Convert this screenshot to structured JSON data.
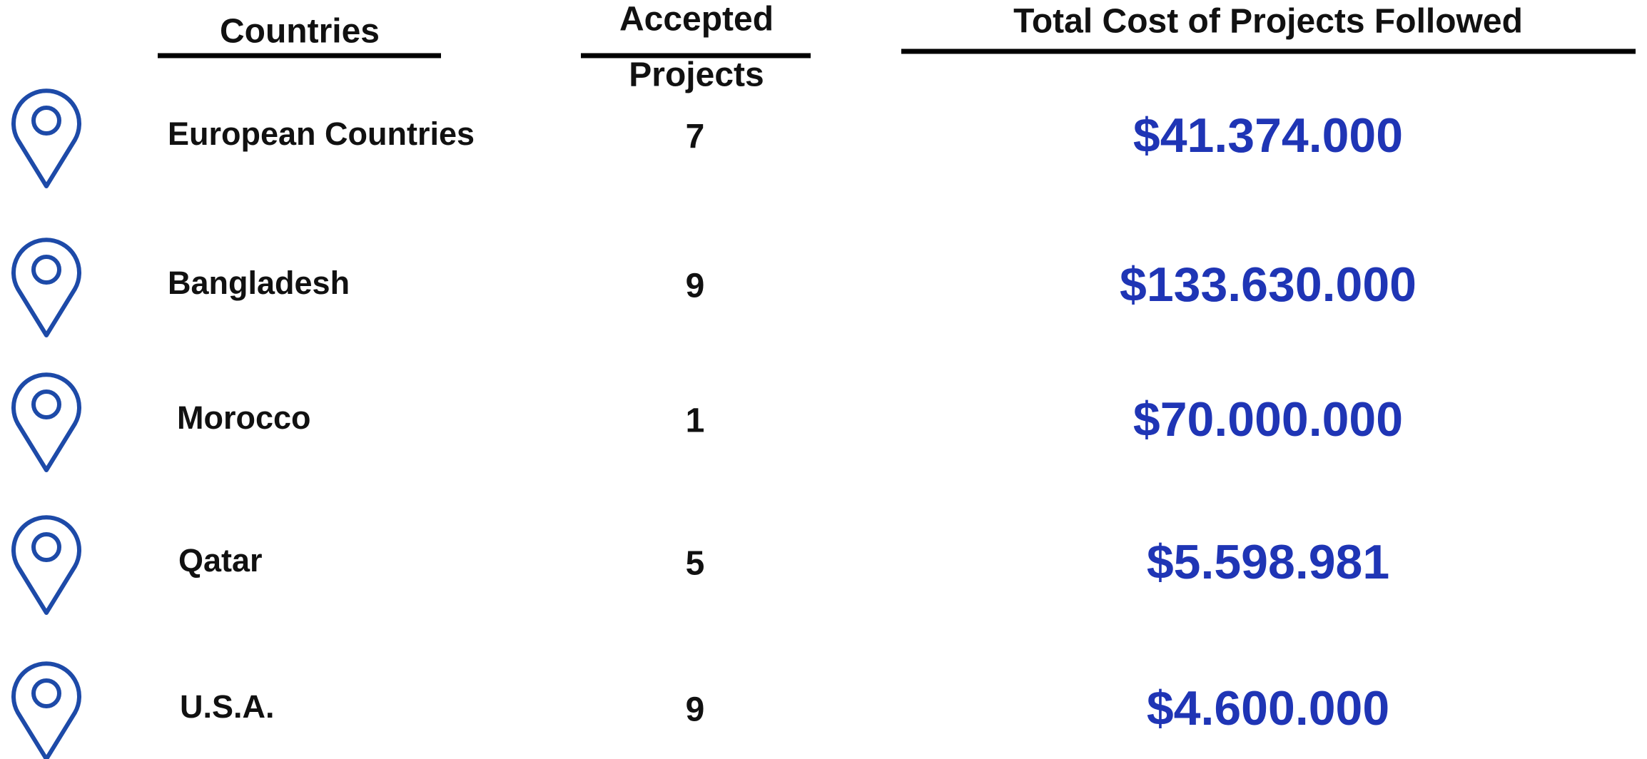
{
  "header": {
    "countries": "Countries",
    "accepted_line1": "Accepted",
    "accepted_line2": "Projects",
    "total_cost": "Total Cost of Projects Followed"
  },
  "rows": [
    {
      "country": "European Countries",
      "projects": 7,
      "cost": "$41.374.000"
    },
    {
      "country": "Bangladesh",
      "projects": 9,
      "cost": "$133.630.000"
    },
    {
      "country": "Morocco",
      "projects": 1,
      "cost": "$70.000.000"
    },
    {
      "country": "Qatar",
      "projects": 5,
      "cost": "$5.598.981"
    },
    {
      "country": "U.S.A.",
      "projects": 9,
      "cost": "$4.600.000"
    }
  ]
}
